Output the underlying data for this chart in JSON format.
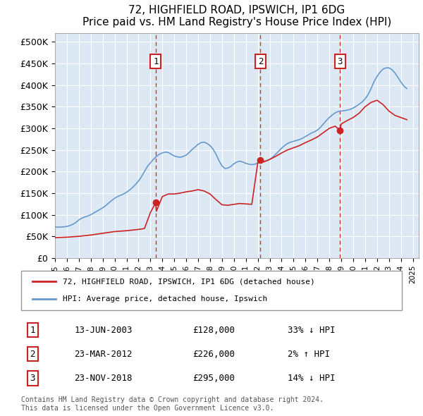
{
  "title": "72, HIGHFIELD ROAD, IPSWICH, IP1 6DG",
  "subtitle": "Price paid vs. HM Land Registry's House Price Index (HPI)",
  "ylabel_ticks": [
    "£0",
    "£50K",
    "£100K",
    "£150K",
    "£200K",
    "£250K",
    "£300K",
    "£350K",
    "£400K",
    "£450K",
    "£500K"
  ],
  "ytick_values": [
    0,
    50000,
    100000,
    150000,
    200000,
    250000,
    300000,
    350000,
    400000,
    450000,
    500000
  ],
  "ylim": [
    0,
    520000
  ],
  "xlim_start": 1995.0,
  "xlim_end": 2025.5,
  "bg_color": "#dce9f5",
  "plot_bg": "#dce9f5",
  "hpi_color": "#6699cc",
  "property_color": "#cc2222",
  "transaction_color": "#cc2222",
  "transactions": [
    {
      "label": "1",
      "date": "13-JUN-2003",
      "year": 2003.45,
      "price": 128000,
      "pct": "33%",
      "dir": "↓"
    },
    {
      "label": "2",
      "date": "23-MAR-2012",
      "year": 2012.23,
      "price": 226000,
      "pct": "2%",
      "dir": "↑"
    },
    {
      "label": "3",
      "date": "23-NOV-2018",
      "year": 2018.9,
      "price": 295000,
      "pct": "14%",
      "dir": "↓"
    }
  ],
  "legend_line1": "72, HIGHFIELD ROAD, IPSWICH, IP1 6DG (detached house)",
  "legend_line2": "HPI: Average price, detached house, Ipswich",
  "footer": "Contains HM Land Registry data © Crown copyright and database right 2024.\nThis data is licensed under the Open Government Licence v3.0.",
  "hpi_data": {
    "years": [
      1995.0,
      1995.25,
      1995.5,
      1995.75,
      1996.0,
      1996.25,
      1996.5,
      1996.75,
      1997.0,
      1997.25,
      1997.5,
      1997.75,
      1998.0,
      1998.25,
      1998.5,
      1998.75,
      1999.0,
      1999.25,
      1999.5,
      1999.75,
      2000.0,
      2000.25,
      2000.5,
      2000.75,
      2001.0,
      2001.25,
      2001.5,
      2001.75,
      2002.0,
      2002.25,
      2002.5,
      2002.75,
      2003.0,
      2003.25,
      2003.5,
      2003.75,
      2004.0,
      2004.25,
      2004.5,
      2004.75,
      2005.0,
      2005.25,
      2005.5,
      2005.75,
      2006.0,
      2006.25,
      2006.5,
      2006.75,
      2007.0,
      2007.25,
      2007.5,
      2007.75,
      2008.0,
      2008.25,
      2008.5,
      2008.75,
      2009.0,
      2009.25,
      2009.5,
      2009.75,
      2010.0,
      2010.25,
      2010.5,
      2010.75,
      2011.0,
      2011.25,
      2011.5,
      2011.75,
      2012.0,
      2012.25,
      2012.5,
      2012.75,
      2013.0,
      2013.25,
      2013.5,
      2013.75,
      2014.0,
      2014.25,
      2014.5,
      2014.75,
      2015.0,
      2015.25,
      2015.5,
      2015.75,
      2016.0,
      2016.25,
      2016.5,
      2016.75,
      2017.0,
      2017.25,
      2017.5,
      2017.75,
      2018.0,
      2018.25,
      2018.5,
      2018.75,
      2019.0,
      2019.25,
      2019.5,
      2019.75,
      2020.0,
      2020.25,
      2020.5,
      2020.75,
      2021.0,
      2021.25,
      2021.5,
      2021.75,
      2022.0,
      2022.25,
      2022.5,
      2022.75,
      2023.0,
      2023.25,
      2023.5,
      2023.75,
      2024.0,
      2024.25,
      2024.5
    ],
    "values": [
      72000,
      71000,
      71500,
      72000,
      73000,
      75000,
      78000,
      82000,
      88000,
      92000,
      95000,
      97000,
      100000,
      104000,
      108000,
      112000,
      116000,
      121000,
      127000,
      133000,
      138000,
      142000,
      145000,
      148000,
      152000,
      157000,
      163000,
      170000,
      178000,
      188000,
      200000,
      212000,
      220000,
      228000,
      235000,
      240000,
      243000,
      245000,
      244000,
      240000,
      236000,
      234000,
      233000,
      235000,
      238000,
      244000,
      251000,
      257000,
      263000,
      267000,
      268000,
      265000,
      260000,
      252000,
      240000,
      225000,
      213000,
      207000,
      208000,
      212000,
      218000,
      222000,
      224000,
      222000,
      219000,
      217000,
      216000,
      217000,
      220000,
      222000,
      224000,
      225000,
      228000,
      233000,
      240000,
      247000,
      254000,
      260000,
      265000,
      268000,
      270000,
      272000,
      274000,
      277000,
      281000,
      285000,
      289000,
      292000,
      296000,
      302000,
      310000,
      318000,
      325000,
      331000,
      336000,
      339000,
      340000,
      341000,
      342000,
      344000,
      347000,
      351000,
      356000,
      361000,
      368000,
      378000,
      392000,
      408000,
      420000,
      430000,
      437000,
      440000,
      440000,
      436000,
      428000,
      418000,
      407000,
      398000,
      392000
    ]
  },
  "property_data": {
    "years": [
      1995.0,
      1995.5,
      1996.0,
      1996.5,
      1997.0,
      1997.5,
      1998.0,
      1998.5,
      1999.0,
      1999.5,
      2000.0,
      2000.5,
      2001.0,
      2001.5,
      2002.0,
      2002.5,
      2003.0,
      2003.45,
      2003.5,
      2004.0,
      2004.5,
      2005.0,
      2005.5,
      2006.0,
      2006.5,
      2007.0,
      2007.5,
      2008.0,
      2008.5,
      2009.0,
      2009.5,
      2010.0,
      2010.5,
      2011.0,
      2011.5,
      2012.0,
      2012.23,
      2012.5,
      2013.0,
      2013.5,
      2014.0,
      2014.5,
      2015.0,
      2015.5,
      2016.0,
      2016.5,
      2017.0,
      2017.5,
      2018.0,
      2018.5,
      2018.9,
      2019.0,
      2019.5,
      2020.0,
      2020.5,
      2021.0,
      2021.5,
      2022.0,
      2022.5,
      2023.0,
      2023.5,
      2024.0,
      2024.5
    ],
    "values": [
      47000,
      47500,
      48000,
      49000,
      50000,
      51500,
      53000,
      55000,
      57000,
      59000,
      61000,
      62000,
      63000,
      64500,
      66000,
      68000,
      105000,
      128000,
      108000,
      142000,
      148000,
      148000,
      150000,
      153000,
      155000,
      158000,
      155000,
      148000,
      135000,
      123000,
      122000,
      124000,
      126000,
      125000,
      124000,
      220000,
      226000,
      222000,
      228000,
      235000,
      243000,
      250000,
      255000,
      260000,
      267000,
      273000,
      280000,
      290000,
      300000,
      305000,
      295000,
      310000,
      318000,
      325000,
      335000,
      350000,
      360000,
      365000,
      355000,
      340000,
      330000,
      325000,
      320000
    ]
  }
}
